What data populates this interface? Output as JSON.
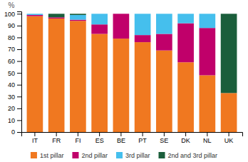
{
  "chart_data": {
    "type": "bar",
    "stacked": true,
    "ylabel": "%",
    "categories": [
      "IT",
      "FR",
      "FI",
      "ES",
      "BE",
      "PT",
      "SE",
      "DK",
      "NL",
      "UK"
    ],
    "series": [
      {
        "name": "1st pillar",
        "color": "#F07820",
        "values": [
          98,
          96,
          94,
          83,
          79,
          76,
          69,
          59,
          48,
          33
        ]
      },
      {
        "name": "2nd pillar",
        "color": "#C0006A",
        "values": [
          1,
          1,
          1,
          8,
          21,
          6,
          14,
          33,
          40,
          0
        ]
      },
      {
        "name": "3rd pillar",
        "color": "#45BFED",
        "values": [
          1,
          0,
          4,
          9,
          0,
          18,
          17,
          8,
          12,
          0
        ]
      },
      {
        "name": "2nd and 3rd pillar",
        "color": "#1B5E3B",
        "values": [
          0,
          3,
          1,
          0,
          0,
          0,
          0,
          0,
          0,
          67
        ]
      }
    ],
    "ylim": [
      0,
      102
    ],
    "yticks": [
      0,
      10,
      20,
      30,
      40,
      50,
      60,
      70,
      80,
      90,
      100
    ],
    "grid": false,
    "legend": "bottom"
  }
}
